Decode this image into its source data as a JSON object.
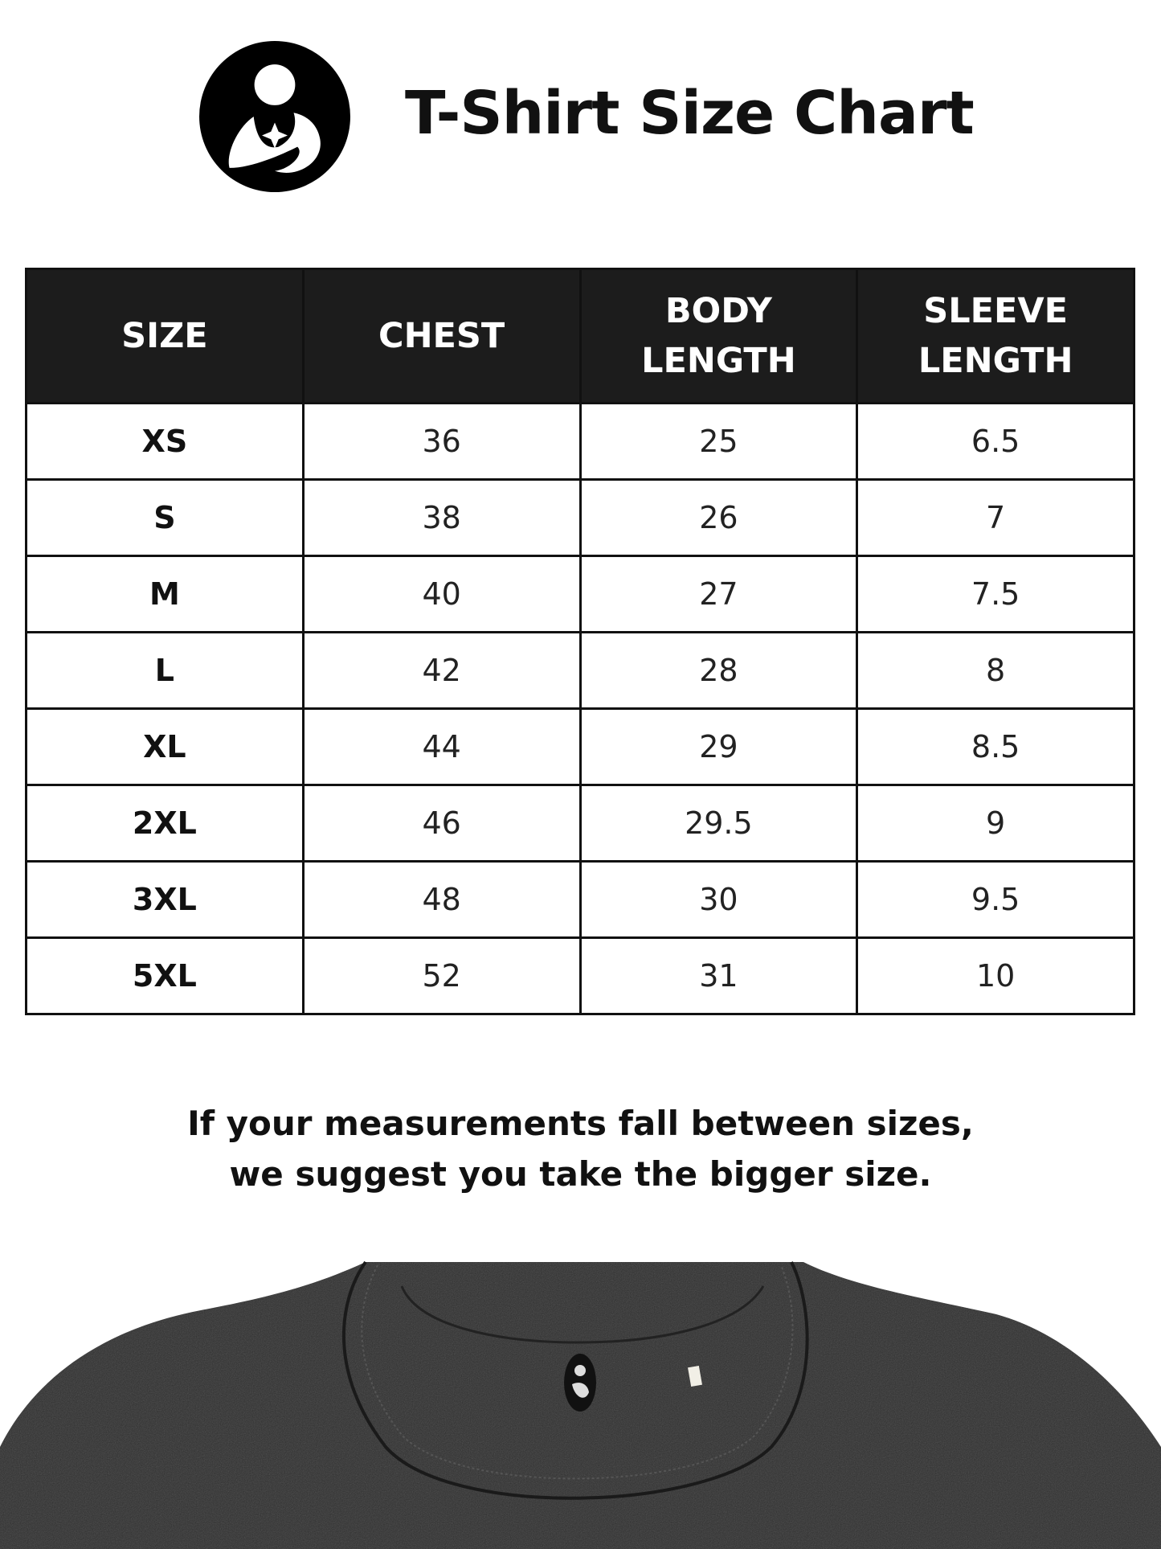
{
  "header": {
    "title": "T-Shirt Size Chart",
    "logo_icon": "mother-and-child-logo"
  },
  "table": {
    "columns": [
      {
        "line1": "SIZE",
        "line2": ""
      },
      {
        "line1": "CHEST",
        "line2": ""
      },
      {
        "line1": "BODY",
        "line2": "LENGTH"
      },
      {
        "line1": "SLEEVE",
        "line2": "LENGTH"
      }
    ],
    "rows": [
      [
        "XS",
        "36",
        "25",
        "6.5"
      ],
      [
        "S",
        "38",
        "26",
        "7"
      ],
      [
        "M",
        "40",
        "27",
        "7.5"
      ],
      [
        "L",
        "42",
        "28",
        "8"
      ],
      [
        "XL",
        "44",
        "29",
        "8.5"
      ],
      [
        "2XL",
        "46",
        "29.5",
        "9"
      ],
      [
        "3XL",
        "48",
        "30",
        "9.5"
      ],
      [
        "5XL",
        "52",
        "31",
        "10"
      ]
    ]
  },
  "note": {
    "line1": "If your measurements fall between sizes,",
    "line2": "we suggest you take the bigger size."
  },
  "colors": {
    "header_bg": "#1c1c1c",
    "shirt": "#2e2e2e"
  }
}
